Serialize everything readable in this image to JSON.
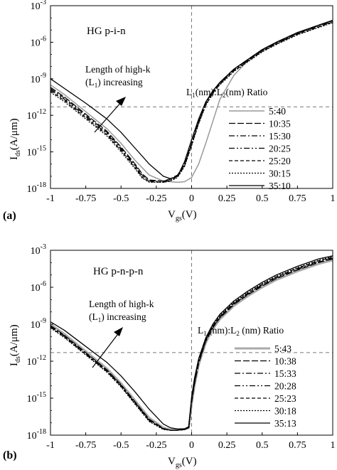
{
  "chart_data": [
    {
      "type": "line",
      "panel_label": "(a)",
      "title": "HG p-i-n",
      "annotation": {
        "line1": "Length of high-k",
        "line2_pre": "(L",
        "line2_sub": "1",
        "line2_post": ") increasing"
      },
      "xlabel": {
        "main": "V",
        "sub": "gs",
        "unit": "(V)"
      },
      "ylabel": {
        "main": "I",
        "sub": "ds",
        "unit": "(A/μm)"
      },
      "xlim": [
        -1,
        1
      ],
      "ylim_log10": [
        -18,
        -3
      ],
      "x_ticks": [
        "-1",
        "-0.75",
        "-0.5",
        "-0.25",
        "0",
        "0.25",
        "0.5",
        "0.75",
        "1"
      ],
      "y_ticks": [
        {
          "base": "10",
          "exp": "-18"
        },
        {
          "base": "10",
          "exp": "-15"
        },
        {
          "base": "10",
          "exp": "-12"
        },
        {
          "base": "10",
          "exp": "-9"
        },
        {
          "base": "10",
          "exp": "-6"
        },
        {
          "base": "10",
          "exp": "-3"
        }
      ],
      "reference_lines": {
        "vertical_x": 0,
        "horizontal_log10": -11.3
      },
      "legend_title": {
        "t1": "L",
        "s1": "1",
        "t2": "(nm):L",
        "s2": "2",
        "t3": "(nm) Ratio"
      },
      "legend_position": "right",
      "series": [
        {
          "name": "5:40",
          "color": "#999999",
          "dash": "",
          "width": 1.5,
          "x": [
            -1,
            -0.9,
            -0.75,
            -0.6,
            -0.5,
            -0.4,
            -0.3,
            -0.2,
            -0.1,
            -0.05,
            0,
            0.05,
            0.1,
            0.15,
            0.2,
            0.3,
            0.4,
            0.5,
            0.6,
            0.75,
            0.9,
            1
          ],
          "y": [
            -9.5,
            -10.3,
            -11.7,
            -13.1,
            -14.3,
            -15.7,
            -16.9,
            -17.4,
            -17.5,
            -17.45,
            -17.1,
            -16.0,
            -14.3,
            -12.5,
            -10.7,
            -8.7,
            -7.5,
            -6.7,
            -6.1,
            -5.3,
            -4.6,
            -4.2
          ]
        },
        {
          "name": "10:35",
          "color": "#000000",
          "dash": "9 3",
          "width": 1.2,
          "x": [
            -1,
            -0.9,
            -0.75,
            -0.6,
            -0.5,
            -0.4,
            -0.35,
            -0.3,
            -0.2,
            -0.15,
            -0.1,
            -0.05,
            0,
            0.05,
            0.1,
            0.15,
            0.2,
            0.3,
            0.4,
            0.5,
            0.6,
            0.75,
            0.9,
            1
          ],
          "y": [
            -9.7,
            -10.5,
            -11.9,
            -13.3,
            -14.6,
            -16.0,
            -16.8,
            -17.3,
            -17.4,
            -17.2,
            -16.9,
            -16.0,
            -14.3,
            -12.5,
            -11.0,
            -10.0,
            -9.3,
            -8.2,
            -7.4,
            -6.6,
            -6.0,
            -5.2,
            -4.6,
            -4.2
          ]
        },
        {
          "name": "15:30",
          "color": "#000000",
          "dash": "8 3 2 3",
          "width": 1.2,
          "x": [
            -1,
            -0.9,
            -0.75,
            -0.6,
            -0.5,
            -0.4,
            -0.35,
            -0.3,
            -0.2,
            -0.15,
            -0.1,
            -0.05,
            0,
            0.05,
            0.1,
            0.15,
            0.2,
            0.3,
            0.4,
            0.5,
            0.6,
            0.75,
            0.9,
            1
          ],
          "y": [
            -9.8,
            -10.6,
            -12.0,
            -13.4,
            -14.7,
            -16.1,
            -16.9,
            -17.35,
            -17.4,
            -17.25,
            -16.95,
            -16.05,
            -14.35,
            -12.55,
            -11.05,
            -10.05,
            -9.35,
            -8.25,
            -7.45,
            -6.65,
            -6.05,
            -5.25,
            -4.65,
            -4.25
          ]
        },
        {
          "name": "20:25",
          "color": "#000000",
          "dash": "8 3 2 3 2 3",
          "width": 1.2,
          "x": [
            -1,
            -0.9,
            -0.75,
            -0.6,
            -0.5,
            -0.4,
            -0.35,
            -0.3,
            -0.2,
            -0.15,
            -0.1,
            -0.05,
            0,
            0.05,
            0.1,
            0.15,
            0.2,
            0.3,
            0.4,
            0.5,
            0.6,
            0.75,
            0.9,
            1
          ],
          "y": [
            -9.9,
            -10.7,
            -12.1,
            -13.5,
            -14.8,
            -16.2,
            -17.0,
            -17.4,
            -17.45,
            -17.3,
            -17.0,
            -16.1,
            -14.4,
            -12.6,
            -11.1,
            -10.1,
            -9.4,
            -8.3,
            -7.5,
            -6.7,
            -6.1,
            -5.3,
            -4.7,
            -4.3
          ]
        },
        {
          "name": "25:20",
          "color": "#000000",
          "dash": "5 3",
          "width": 1.2,
          "x": [
            -1,
            -0.9,
            -0.75,
            -0.6,
            -0.5,
            -0.4,
            -0.35,
            -0.3,
            -0.2,
            -0.15,
            -0.1,
            -0.05,
            0,
            0.05,
            0.1,
            0.15,
            0.2,
            0.3,
            0.4,
            0.5,
            0.6,
            0.75,
            0.9,
            1
          ],
          "y": [
            -10.0,
            -10.8,
            -12.2,
            -13.6,
            -14.9,
            -16.3,
            -17.1,
            -17.45,
            -17.5,
            -17.35,
            -17.05,
            -16.15,
            -14.45,
            -12.65,
            -11.15,
            -10.15,
            -9.45,
            -8.35,
            -7.55,
            -6.75,
            -6.15,
            -5.35,
            -4.75,
            -4.35
          ]
        },
        {
          "name": "30:15",
          "color": "#000000",
          "dash": "2 2",
          "width": 1.2,
          "x": [
            -1,
            -0.9,
            -0.75,
            -0.6,
            -0.5,
            -0.4,
            -0.35,
            -0.3,
            -0.2,
            -0.15,
            -0.1,
            -0.05,
            0,
            0.05,
            0.1,
            0.15,
            0.2,
            0.3,
            0.4,
            0.5,
            0.6,
            0.75,
            0.9,
            1
          ],
          "y": [
            -10.1,
            -10.9,
            -12.3,
            -13.7,
            -15.0,
            -16.4,
            -17.15,
            -17.5,
            -17.5,
            -17.4,
            -17.1,
            -16.2,
            -14.5,
            -12.7,
            -11.2,
            -10.2,
            -9.5,
            -8.4,
            -7.6,
            -6.8,
            -6.2,
            -5.4,
            -4.8,
            -4.4
          ]
        },
        {
          "name": "35:10",
          "color": "#000000",
          "dash": "",
          "width": 1.3,
          "x": [
            -1,
            -0.9,
            -0.75,
            -0.6,
            -0.5,
            -0.4,
            -0.3,
            -0.2,
            -0.15,
            -0.1,
            -0.05,
            0,
            0.05,
            0.1,
            0.15,
            0.2,
            0.3,
            0.4,
            0.5,
            0.6,
            0.75,
            0.9,
            1
          ],
          "y": [
            -9.0,
            -9.8,
            -11.0,
            -12.3,
            -13.4,
            -14.7,
            -16.0,
            -17.0,
            -17.2,
            -17.0,
            -15.8,
            -14.0,
            -12.3,
            -10.9,
            -10.0,
            -9.3,
            -8.2,
            -7.4,
            -6.6,
            -6.0,
            -5.2,
            -4.6,
            -4.2
          ]
        }
      ]
    },
    {
      "type": "line",
      "panel_label": "(b)",
      "title": "HG p-n-p-n",
      "annotation": {
        "line1": "Length of high-k",
        "line2_pre": "(L",
        "line2_sub": "1",
        "line2_post": ") increasing"
      },
      "xlabel": {
        "main": "V",
        "sub": "gs",
        "unit": "(V)"
      },
      "ylabel": {
        "main": "I",
        "sub": "ds",
        "unit": "(A/μm)"
      },
      "xlim": [
        -1,
        1
      ],
      "ylim_log10": [
        -18,
        -3
      ],
      "x_ticks": [
        "-1",
        "-0.75",
        "-0.5",
        "-0.25",
        "0",
        "0.25",
        "0.5",
        "0.75",
        "1"
      ],
      "y_ticks": [
        {
          "base": "10",
          "exp": "-18"
        },
        {
          "base": "10",
          "exp": "-15"
        },
        {
          "base": "10",
          "exp": "-12"
        },
        {
          "base": "10",
          "exp": "-9"
        },
        {
          "base": "10",
          "exp": "-6"
        },
        {
          "base": "10",
          "exp": "-3"
        }
      ],
      "reference_lines": {
        "vertical_x": 0,
        "horizontal_log10": -11.3
      },
      "legend_title": {
        "t1": "L",
        "s1": "1",
        "t2": " (nm):L",
        "s2": "2",
        "t3": " (nm) Ratio"
      },
      "legend_position": "right",
      "series": [
        {
          "name": "5:43",
          "color": "#aaaaaa",
          "dash": "",
          "width": 3,
          "x": [
            -1,
            -0.9,
            -0.75,
            -0.6,
            -0.5,
            -0.4,
            -0.3,
            -0.2,
            -0.15,
            -0.1,
            -0.05,
            -0.02,
            0,
            0.02,
            0.05,
            0.1,
            0.15,
            0.2,
            0.3,
            0.4,
            0.5,
            0.6,
            0.75,
            0.9,
            1
          ],
          "y": [
            -9.0,
            -9.8,
            -11.2,
            -12.6,
            -13.8,
            -15.2,
            -16.6,
            -17.4,
            -17.55,
            -17.55,
            -17.5,
            -17.4,
            -15.5,
            -14.0,
            -12.3,
            -10.5,
            -9.4,
            -8.6,
            -7.5,
            -6.7,
            -6.0,
            -5.4,
            -4.7,
            -4.1,
            -3.8
          ]
        },
        {
          "name": "10:38",
          "color": "#000000",
          "dash": "9 3",
          "width": 1.2,
          "x": [
            -1,
            -0.9,
            -0.75,
            -0.6,
            -0.5,
            -0.4,
            -0.3,
            -0.2,
            -0.15,
            -0.1,
            -0.05,
            -0.02,
            0,
            0.02,
            0.05,
            0.1,
            0.15,
            0.2,
            0.3,
            0.4,
            0.5,
            0.6,
            0.75,
            0.9,
            1
          ],
          "y": [
            -9.1,
            -9.9,
            -11.3,
            -12.7,
            -13.9,
            -15.3,
            -16.7,
            -17.45,
            -17.6,
            -17.6,
            -17.55,
            -17.4,
            -15.4,
            -13.9,
            -12.2,
            -10.4,
            -9.3,
            -8.5,
            -7.4,
            -6.6,
            -5.9,
            -5.3,
            -4.6,
            -4.0,
            -3.7
          ]
        },
        {
          "name": "15:33",
          "color": "#000000",
          "dash": "8 3 2 3",
          "width": 1.2,
          "x": [
            -1,
            -0.9,
            -0.75,
            -0.6,
            -0.5,
            -0.4,
            -0.3,
            -0.2,
            -0.15,
            -0.1,
            -0.05,
            -0.02,
            0,
            0.02,
            0.05,
            0.1,
            0.15,
            0.2,
            0.3,
            0.4,
            0.5,
            0.6,
            0.75,
            0.9,
            1
          ],
          "y": [
            -9.15,
            -9.95,
            -11.35,
            -12.75,
            -13.95,
            -15.35,
            -16.75,
            -17.5,
            -17.6,
            -17.6,
            -17.55,
            -17.4,
            -15.3,
            -13.8,
            -12.1,
            -10.35,
            -9.25,
            -8.45,
            -7.35,
            -6.55,
            -5.85,
            -5.25,
            -4.55,
            -3.95,
            -3.65
          ]
        },
        {
          "name": "20:28",
          "color": "#000000",
          "dash": "8 3 2 3 2 3",
          "width": 1.2,
          "x": [
            -1,
            -0.9,
            -0.75,
            -0.6,
            -0.5,
            -0.4,
            -0.3,
            -0.2,
            -0.15,
            -0.1,
            -0.05,
            -0.02,
            0,
            0.02,
            0.05,
            0.1,
            0.15,
            0.2,
            0.3,
            0.4,
            0.5,
            0.6,
            0.75,
            0.9,
            1
          ],
          "y": [
            -9.2,
            -10.0,
            -11.4,
            -12.8,
            -14.0,
            -15.4,
            -16.8,
            -17.5,
            -17.6,
            -17.6,
            -17.55,
            -17.4,
            -15.2,
            -13.7,
            -12.0,
            -10.3,
            -9.2,
            -8.4,
            -7.3,
            -6.5,
            -5.8,
            -5.2,
            -4.5,
            -3.9,
            -3.6
          ]
        },
        {
          "name": "25:23",
          "color": "#000000",
          "dash": "5 3",
          "width": 1.2,
          "x": [
            -1,
            -0.9,
            -0.75,
            -0.6,
            -0.5,
            -0.4,
            -0.3,
            -0.2,
            -0.15,
            -0.1,
            -0.05,
            -0.02,
            0,
            0.02,
            0.05,
            0.1,
            0.15,
            0.2,
            0.3,
            0.4,
            0.5,
            0.6,
            0.75,
            0.9,
            1
          ],
          "y": [
            -9.25,
            -10.05,
            -11.45,
            -12.85,
            -14.05,
            -15.45,
            -16.85,
            -17.5,
            -17.6,
            -17.6,
            -17.55,
            -17.4,
            -15.1,
            -13.6,
            -11.95,
            -10.25,
            -9.15,
            -8.35,
            -7.25,
            -6.45,
            -5.75,
            -5.15,
            -4.45,
            -3.85,
            -3.55
          ]
        },
        {
          "name": "30:18",
          "color": "#000000",
          "dash": "2 2",
          "width": 1.2,
          "x": [
            -1,
            -0.9,
            -0.75,
            -0.6,
            -0.5,
            -0.4,
            -0.3,
            -0.2,
            -0.15,
            -0.1,
            -0.05,
            -0.02,
            0,
            0.02,
            0.05,
            0.1,
            0.15,
            0.2,
            0.3,
            0.4,
            0.5,
            0.6,
            0.75,
            0.9,
            1
          ],
          "y": [
            -9.3,
            -10.1,
            -11.5,
            -12.9,
            -14.1,
            -15.5,
            -16.9,
            -17.55,
            -17.6,
            -17.6,
            -17.55,
            -17.4,
            -15.0,
            -13.5,
            -11.9,
            -10.2,
            -9.1,
            -8.3,
            -7.2,
            -6.4,
            -5.7,
            -5.1,
            -4.4,
            -3.8,
            -3.5
          ]
        },
        {
          "name": "35:13",
          "color": "#000000",
          "dash": "",
          "width": 1.3,
          "x": [
            -1,
            -0.9,
            -0.75,
            -0.6,
            -0.5,
            -0.4,
            -0.3,
            -0.2,
            -0.15,
            -0.1,
            -0.05,
            -0.02,
            0,
            0.02,
            0.05,
            0.1,
            0.15,
            0.2,
            0.3,
            0.4,
            0.5,
            0.6,
            0.75,
            0.9,
            1
          ],
          "y": [
            -8.8,
            -9.5,
            -10.8,
            -12.1,
            -13.2,
            -14.5,
            -15.9,
            -17.1,
            -17.4,
            -17.5,
            -17.5,
            -17.3,
            -14.9,
            -13.4,
            -11.8,
            -10.1,
            -9.0,
            -8.2,
            -7.1,
            -6.3,
            -5.6,
            -5.0,
            -4.3,
            -3.7,
            -3.45
          ]
        }
      ]
    }
  ]
}
